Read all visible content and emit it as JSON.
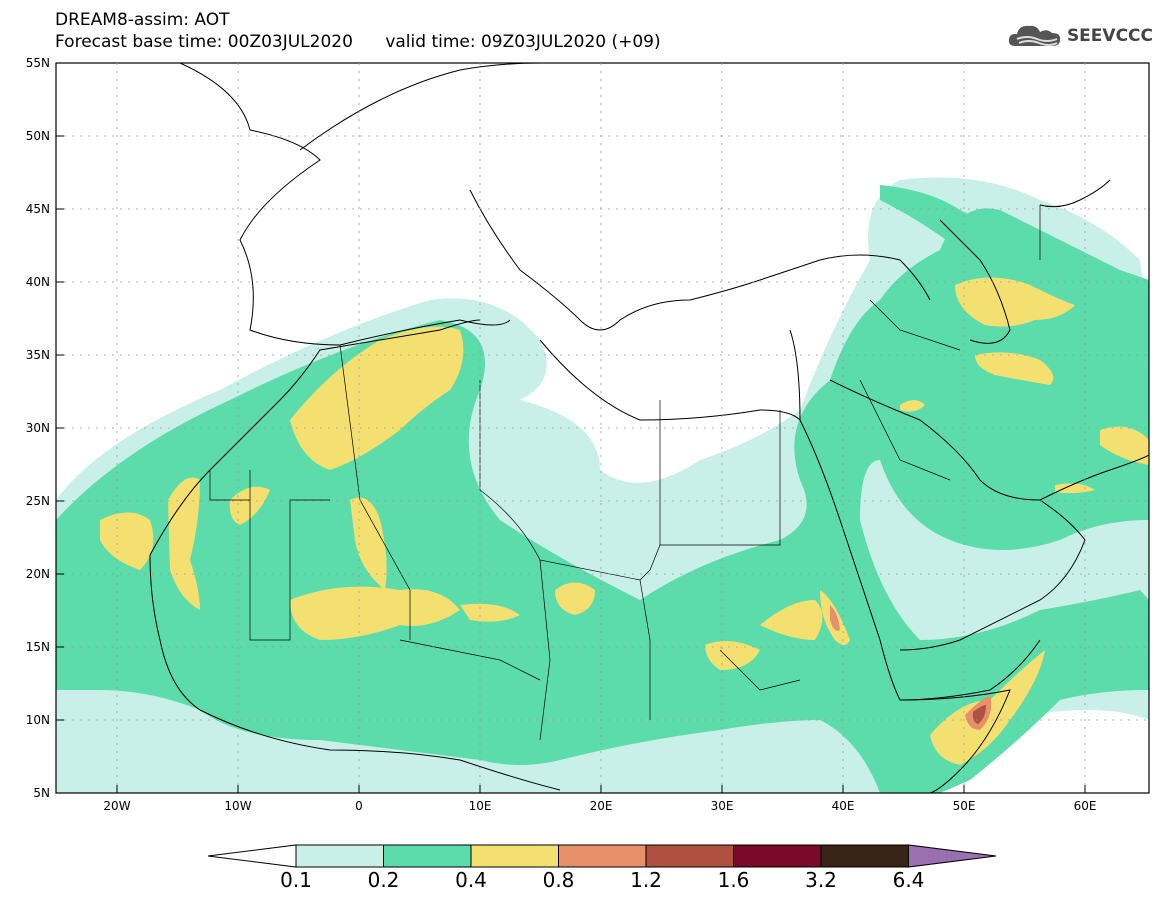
{
  "header": {
    "title": "DREAM8-assim: AOT",
    "subtitle": "Forecast base time: 00Z03JUL2020      valid time: 09Z03JUL2020 (+09)",
    "logo_text": "SEEVCCC",
    "logo_icon": "cloud-icon"
  },
  "map": {
    "lon_range": [
      -25,
      65
    ],
    "lat_range": [
      5,
      55
    ],
    "lon_ticks": [
      "20W",
      "10W",
      "0",
      "10E",
      "20E",
      "30E",
      "40E",
      "50E",
      "60E"
    ],
    "lat_ticks": [
      "55N",
      "50N",
      "45N",
      "40N",
      "35N",
      "30N",
      "25N",
      "20N",
      "15N",
      "10N",
      "5N"
    ]
  },
  "colorbar": {
    "labels": [
      "0.1",
      "0.2",
      "0.4",
      "0.8",
      "1.2",
      "1.6",
      "3.2",
      "6.4"
    ],
    "colors": [
      "#c8f0e8",
      "#5cdcaa",
      "#f4e070",
      "#e8906a",
      "#b05040",
      "#7a0a2a",
      "#3a2418",
      "#9a70b0"
    ]
  }
}
